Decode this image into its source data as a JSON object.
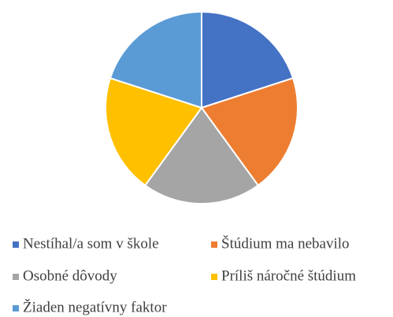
{
  "chart_data": {
    "type": "pie",
    "categories": [
      "Nestíhal/a som v škole",
      "Štúdium ma nebavilo",
      "Osobné dôvody",
      "Príliš náročné štúdium",
      "Žiaden negatívny faktor"
    ],
    "values": [
      20,
      20,
      20,
      20,
      20
    ],
    "colors": [
      "#4472c4",
      "#ed7d31",
      "#a5a5a5",
      "#ffc000",
      "#5b9bd5"
    ],
    "legend": "bottom"
  }
}
